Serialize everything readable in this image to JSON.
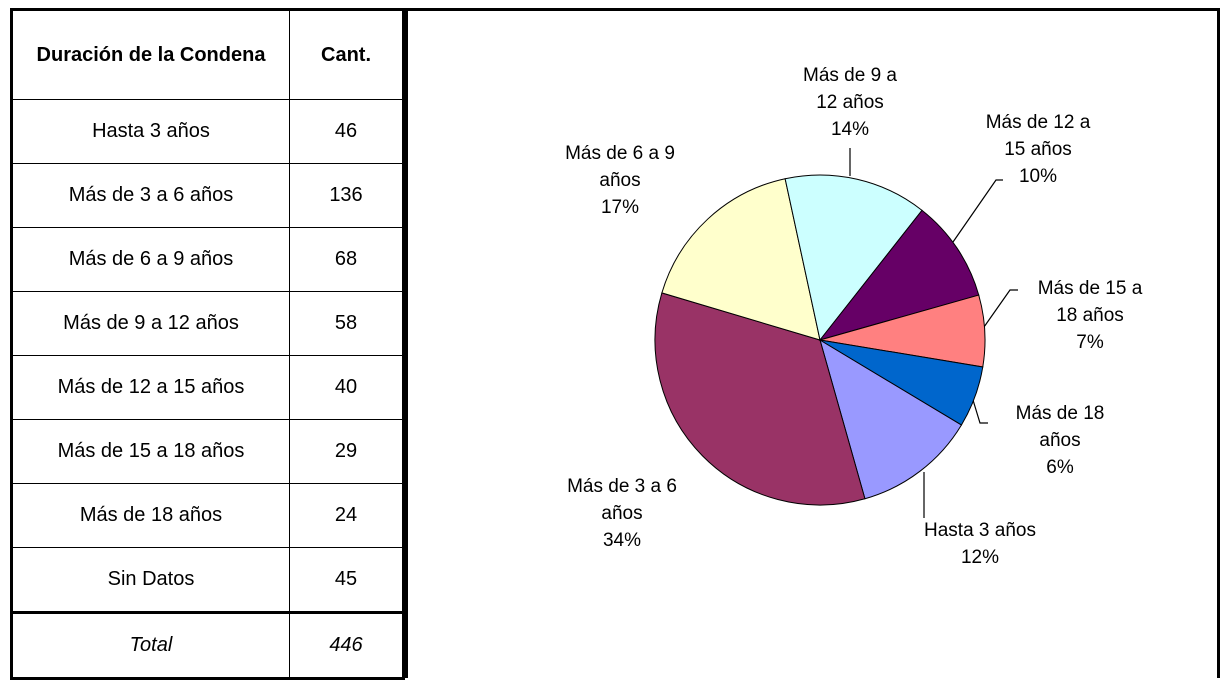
{
  "table": {
    "header": [
      "Duración de la Condena",
      "Cant."
    ],
    "rows": [
      [
        "Hasta 3 años",
        46
      ],
      [
        "Más de 3 a 6 años",
        136
      ],
      [
        "Más de 6 a 9 años",
        68
      ],
      [
        "Más de 9 a 12 años",
        58
      ],
      [
        "Más de 12 a 15 años",
        40
      ],
      [
        "Más de 15 a 18 años",
        29
      ],
      [
        "Más de 18 años",
        24
      ],
      [
        "Sin Datos",
        45
      ]
    ],
    "total": [
      "Total",
      446
    ]
  },
  "chart_data": {
    "type": "pie",
    "categories": [
      "Hasta 3 años",
      "Más de 3 a 6 años",
      "Más de 6 a 9 años",
      "Más de 9 a 12 años",
      "Más de 12 a 15 años",
      "Más de 15 a 18 años",
      "Más de 18 años"
    ],
    "values": [
      12,
      34,
      17,
      14,
      10,
      7,
      6
    ],
    "value_labels": [
      "12%",
      "34%",
      "17%",
      "14%",
      "10%",
      "7%",
      "6%"
    ],
    "colors": [
      "#9999ff",
      "#993366",
      "#ffffcc",
      "#ccffff",
      "#660066",
      "#ff8080",
      "#0066cc"
    ],
    "first_slice_angle": 121
  }
}
